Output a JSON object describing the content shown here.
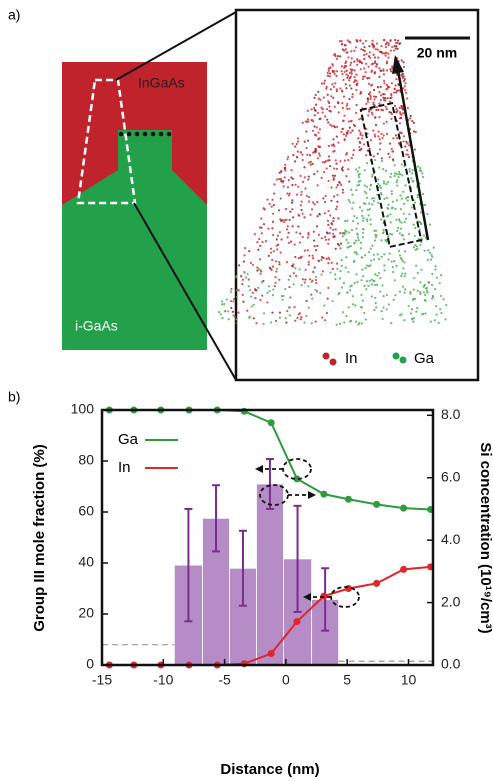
{
  "panel_a": {
    "label": "a)",
    "top_layer": "InGaAs",
    "bottom_layer": "i-GaAs",
    "scale_bar": "20 nm",
    "legend": [
      "In",
      "Ga"
    ]
  },
  "chart_data": {
    "type": "line",
    "panel_label": "b)",
    "xlabel": "Distance (nm)",
    "ylabel": "Group III mole fraction (%)",
    "y2label": "Si concentration (10¹⁹/cm³)",
    "x": [
      -14.4,
      -12.4,
      -10.2,
      -7.9,
      -5.6,
      -3.4,
      -1.2,
      0.9,
      3.1,
      5.1,
      7.4,
      9.6,
      11.8
    ],
    "series": [
      {
        "name": "Ga",
        "color": "#2e9b3e",
        "values": [
          100,
          100,
          100,
          100,
          100,
          99.5,
          95,
          73,
          67,
          65,
          63,
          61.5,
          61
        ]
      },
      {
        "name": "In",
        "color": "#e0262b",
        "values": [
          0,
          0,
          0,
          0,
          0,
          0.5,
          4.5,
          17,
          27,
          30,
          32,
          37.5,
          38.5
        ]
      }
    ],
    "bars": {
      "axis": "y2",
      "color": "#b58cc6",
      "error_color": "#7b2d8e",
      "bins": [
        -9.1,
        -6.8,
        -4.6,
        -2.4,
        -0.2,
        2.1,
        4.3
      ],
      "values": [
        3.2,
        4.7,
        3.1,
        5.8,
        3.4,
        2.1
      ],
      "errors": [
        1.8,
        1.06,
        1.2,
        0.8,
        1.7,
        1.0
      ]
    },
    "baselines": [
      {
        "x": [
          -15,
          -9.1
        ],
        "value": 0.65
      },
      {
        "x": [
          4.3,
          12
        ],
        "value": 0.12
      }
    ],
    "xlim": [
      -15,
      12
    ],
    "ylim": [
      0,
      100
    ],
    "y2lim": [
      0,
      8.17
    ],
    "xticks": [
      -15,
      -10,
      -5,
      0,
      5,
      10
    ],
    "yticks": [
      0,
      20,
      40,
      60,
      80,
      100
    ],
    "y2ticks": [
      {
        "value": 0,
        "label": "0.0"
      },
      {
        "value": 2,
        "label": "2.0"
      },
      {
        "value": 4,
        "label": "4.0"
      },
      {
        "value": 6,
        "label": "6.0"
      },
      {
        "value": 8,
        "label": "8.0"
      }
    ]
  }
}
